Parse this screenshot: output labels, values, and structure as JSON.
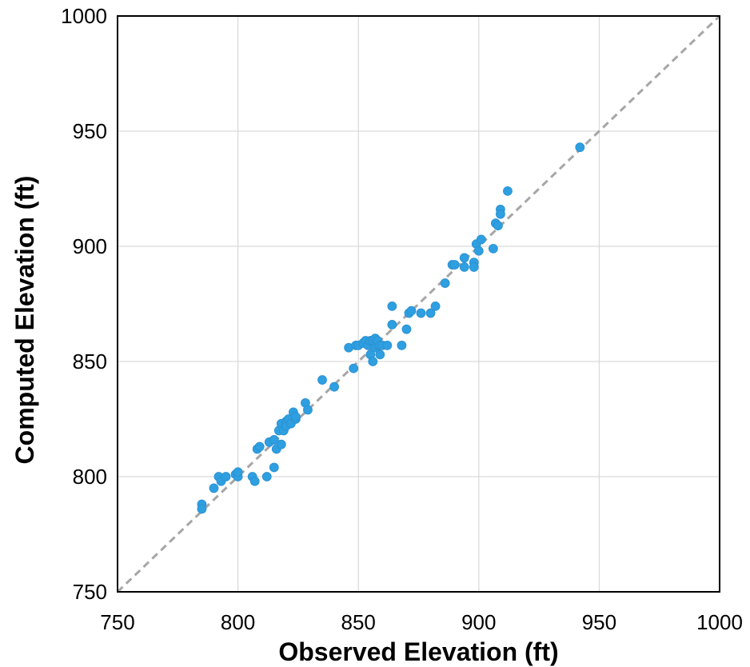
{
  "chart_data": {
    "type": "scatter",
    "title": "",
    "xlabel": "Observed Elevation (ft)",
    "ylabel": "Computed Elevation (ft)",
    "xlim": [
      750,
      1000
    ],
    "ylim": [
      750,
      1000
    ],
    "xticks": [
      "750",
      "800",
      "850",
      "900",
      "950",
      "1000"
    ],
    "yticks": [
      "750",
      "800",
      "850",
      "900",
      "950",
      "1000"
    ],
    "grid": true,
    "legend": "none",
    "reference_line": {
      "style": "dashed",
      "color": "#a6a6a6",
      "from": [
        750,
        750
      ],
      "to": [
        1000,
        1000
      ]
    },
    "marker_color": "#2e9fe0",
    "series": [
      {
        "x": [
          785,
          785,
          790,
          792,
          793,
          795,
          799,
          800,
          800,
          806,
          807,
          808,
          809,
          812,
          813,
          815,
          815,
          816,
          817,
          818,
          818,
          819,
          820,
          820,
          821,
          822,
          823,
          824,
          824,
          828,
          829,
          835,
          840,
          846,
          848,
          849,
          850,
          852,
          853,
          854,
          855,
          855,
          856,
          856,
          857,
          857,
          858,
          858,
          859,
          859,
          860,
          862,
          864,
          864,
          868,
          870,
          871,
          872,
          876,
          880,
          882,
          886,
          889,
          890,
          894,
          894,
          898,
          898,
          899,
          900,
          901,
          906,
          907,
          908,
          909,
          909,
          912,
          942
        ],
        "y": [
          788,
          786,
          795,
          800,
          798,
          800,
          801,
          800,
          802,
          800,
          798,
          812,
          813,
          800,
          815,
          804,
          816,
          812,
          820,
          814,
          823,
          820,
          824,
          822,
          825,
          823,
          828,
          825,
          826,
          832,
          829,
          842,
          839,
          856,
          847,
          857,
          857,
          858,
          859,
          857,
          853,
          859,
          850,
          859,
          856,
          860,
          857,
          859,
          853,
          857,
          857,
          857,
          874,
          866,
          857,
          864,
          871,
          872,
          871,
          871,
          874,
          884,
          892,
          892,
          891,
          895,
          893,
          891,
          901,
          898,
          903,
          899,
          910,
          909,
          916,
          914,
          924,
          943
        ]
      }
    ]
  }
}
